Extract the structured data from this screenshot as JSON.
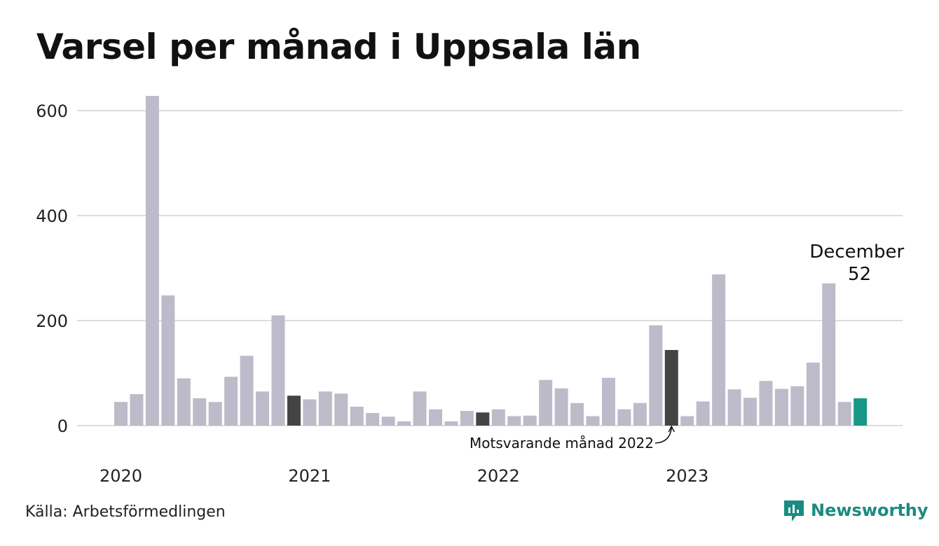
{
  "title": "Varsel per månad i Uppsala län",
  "source": "Källa: Arbetsförmedlingen",
  "brand": "Newsworthy",
  "colors": {
    "bar": "#bdbbc9",
    "comparison": "#444444",
    "highlight": "#1a9687",
    "grid": "#dddddd",
    "brand": "#1a8b80"
  },
  "chart_data": {
    "type": "bar",
    "title": "Varsel per månad i Uppsala län",
    "xlabel": "",
    "ylabel": "",
    "ylim": [
      0,
      640
    ],
    "grid": true,
    "y_ticks": [
      0,
      200,
      400,
      600
    ],
    "x_tick_labels": [
      {
        "label": "2020",
        "index": 0
      },
      {
        "label": "2021",
        "index": 12
      },
      {
        "label": "2022",
        "index": 24
      },
      {
        "label": "2023",
        "index": 36
      }
    ],
    "values": [
      45,
      60,
      628,
      248,
      90,
      52,
      45,
      93,
      133,
      65,
      210,
      57,
      50,
      65,
      61,
      36,
      24,
      17,
      8,
      65,
      31,
      8,
      28,
      25,
      31,
      18,
      19,
      87,
      71,
      43,
      18,
      91,
      31,
      43,
      191,
      144,
      18,
      46,
      288,
      69,
      53,
      85,
      70,
      75,
      120,
      271,
      45,
      52
    ],
    "comparison_index": [
      11,
      23,
      35
    ],
    "highlight_index": 47,
    "annotations": [
      {
        "text": "December",
        "index": 47
      },
      {
        "text": "52",
        "index": 47
      },
      {
        "text": "Motsvarande månad 2022",
        "index": 35
      }
    ]
  }
}
